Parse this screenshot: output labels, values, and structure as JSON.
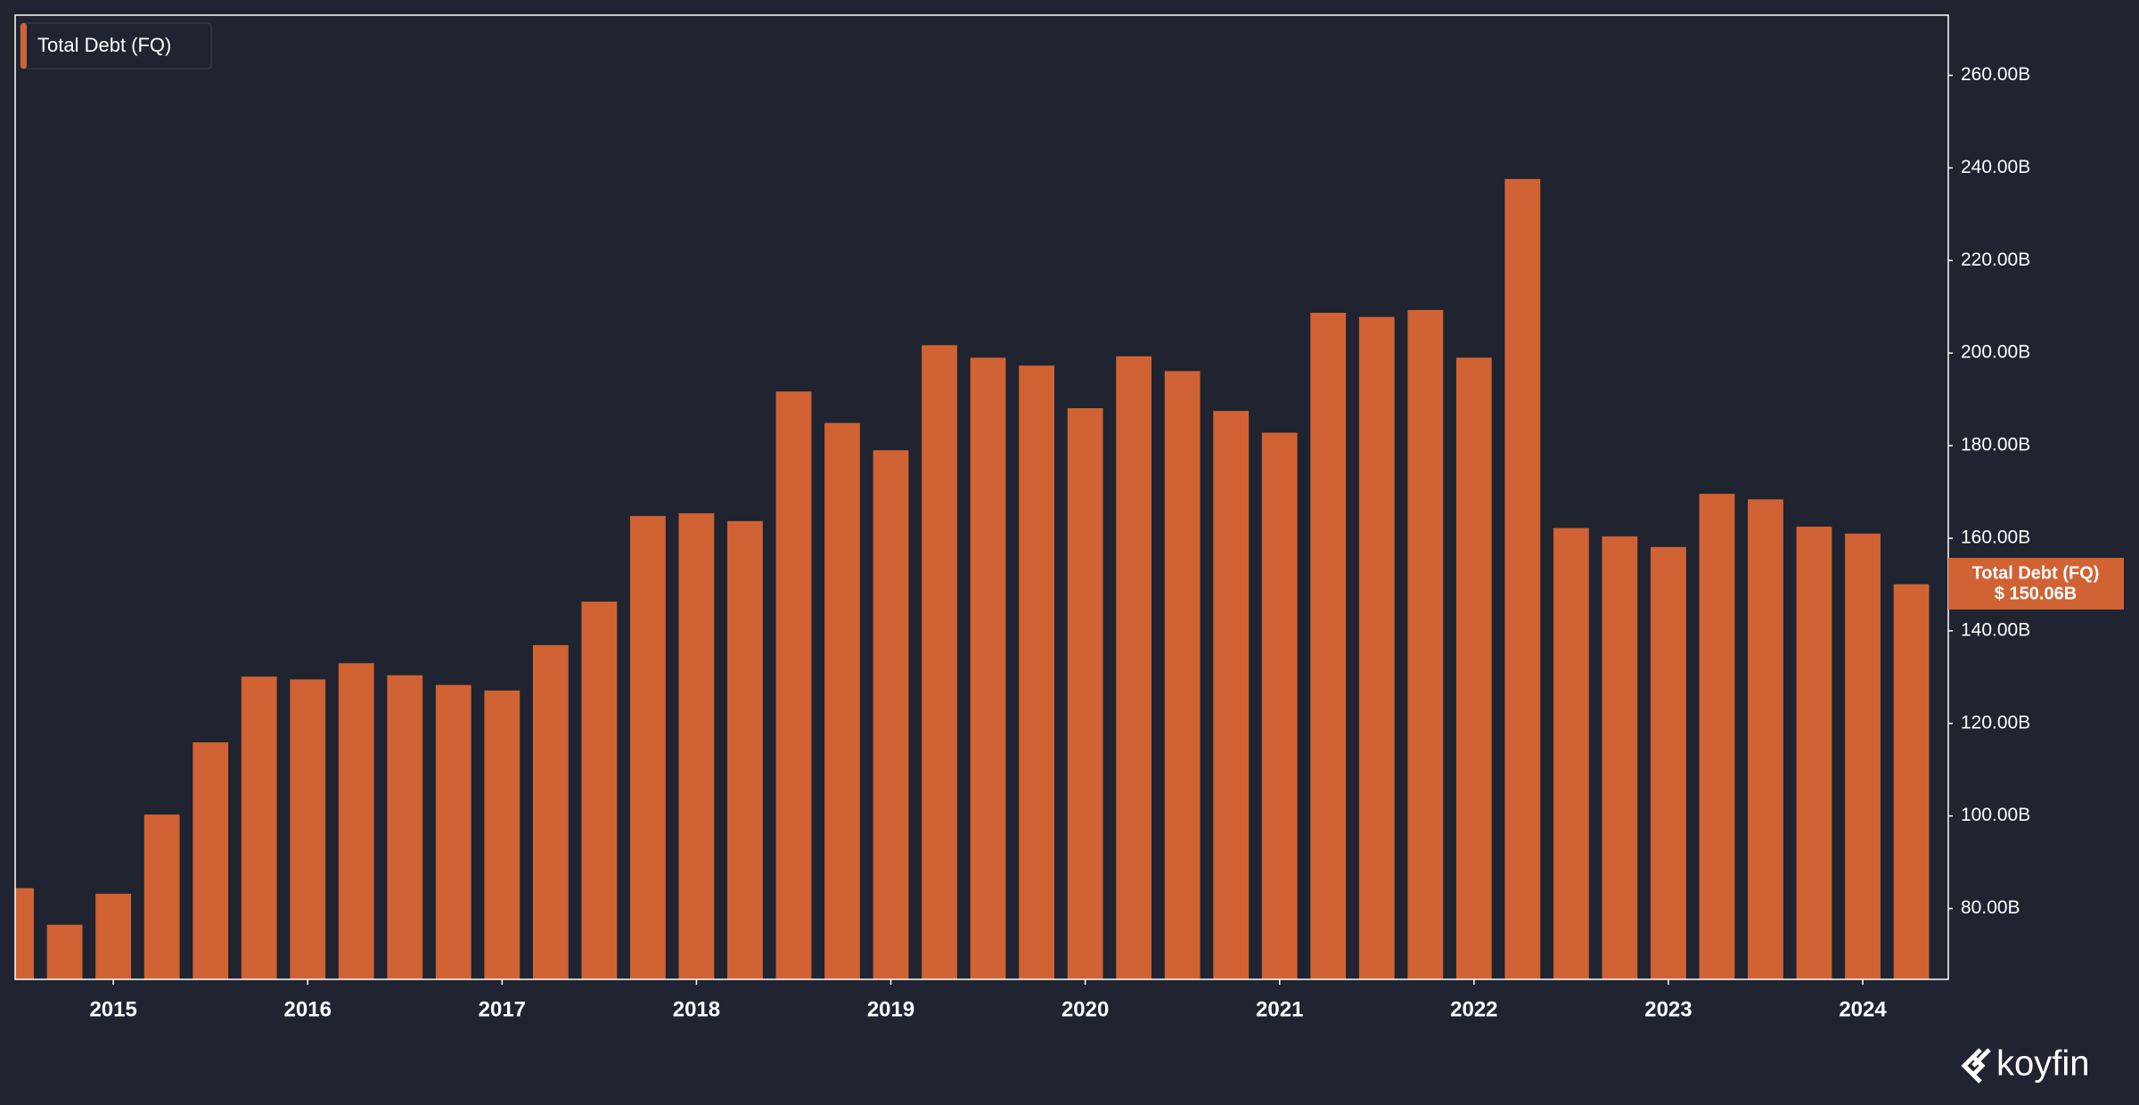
{
  "chart_data": {
    "type": "bar",
    "x": [
      2014.5,
      2014.75,
      2015,
      2015.25,
      2015.5,
      2015.75,
      2016,
      2016.25,
      2016.5,
      2016.75,
      2017,
      2017.25,
      2017.5,
      2017.75,
      2018,
      2018.25,
      2018.5,
      2018.75,
      2019,
      2019.25,
      2019.5,
      2019.75,
      2020,
      2020.25,
      2020.5,
      2020.75,
      2021,
      2021.25,
      2021.5,
      2021.75,
      2022,
      2022.25,
      2022.5,
      2022.75,
      2023,
      2023.25,
      2023.5,
      2023.75,
      2024,
      2024.25
    ],
    "series": [
      {
        "name": "Total Debt (FQ)",
        "color": "#d16233",
        "values": [
          84.4,
          76.5,
          83.2,
          100.3,
          115.9,
          130.1,
          129.5,
          133.0,
          130.4,
          128.3,
          127.1,
          136.9,
          146.3,
          164.8,
          165.4,
          163.7,
          191.7,
          184.9,
          179.0,
          201.7,
          199.0,
          197.3,
          188.1,
          199.3,
          196.1,
          187.5,
          182.8,
          208.7,
          207.8,
          209.3,
          199.0,
          237.6,
          162.2,
          160.4,
          158.1,
          169.6,
          168.4,
          162.5,
          161.0,
          150.06
        ],
        "last_value_label": "$ 150.06B"
      }
    ],
    "xlim": [
      2014.495,
      2024.44
    ],
    "xticks": [
      2015,
      2016,
      2017,
      2018,
      2019,
      2020,
      2021,
      2022,
      2023,
      2024
    ],
    "ylim": [
      64.7,
      273
    ],
    "yticks": [
      {
        "value": 80,
        "label": "80.00B"
      },
      {
        "value": 100,
        "label": "100.00B"
      },
      {
        "value": 120,
        "label": "120.00B"
      },
      {
        "value": 140,
        "label": "140.00B"
      },
      {
        "value": 160,
        "label": "160.00B"
      },
      {
        "value": 180,
        "label": "180.00B"
      },
      {
        "value": 200,
        "label": "200.00B"
      },
      {
        "value": 220,
        "label": "220.00B"
      },
      {
        "value": 240,
        "label": "240.00B"
      },
      {
        "value": 260,
        "label": "260.00B"
      }
    ],
    "y_axis_side": "right",
    "grid": false,
    "legend": "top-left",
    "brand": "koyfin"
  }
}
